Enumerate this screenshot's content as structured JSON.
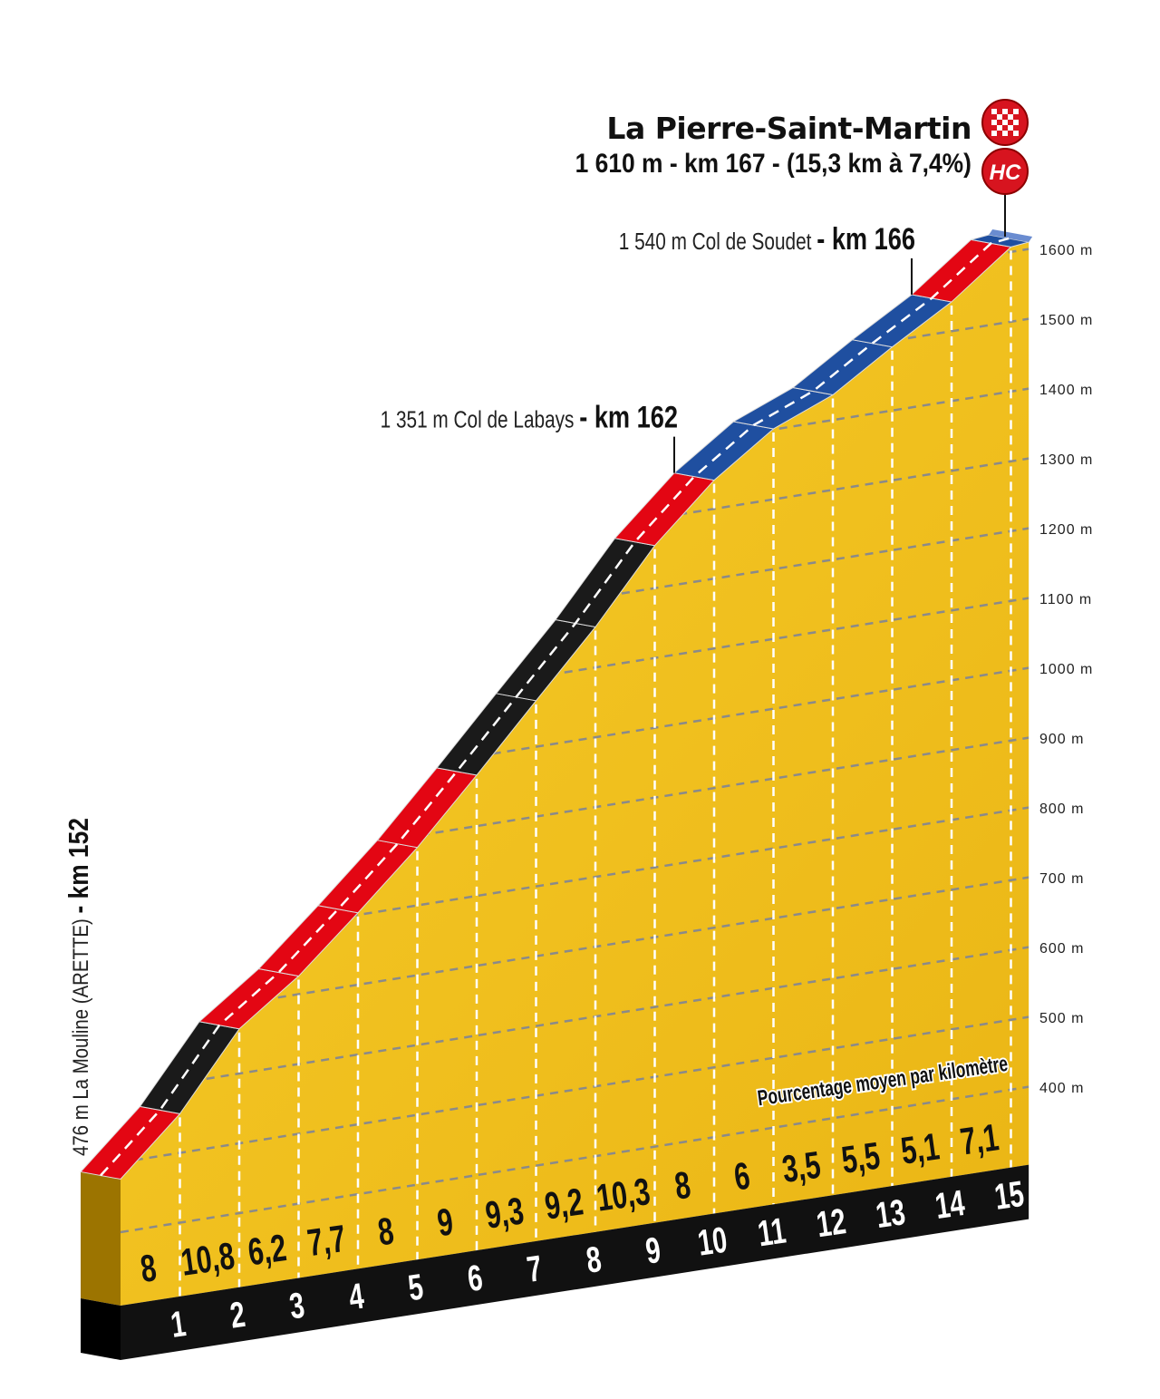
{
  "chart_data": {
    "type": "area",
    "title": "La Pierre-Saint-Martin",
    "subtitle": "1 610 m - km 167 - (15,3 km à 7,4%)",
    "summit_badges": [
      "checkered-flag",
      "HC"
    ],
    "start_label": "476 m  La Mouline (ARETTE) - km 152",
    "start_elevation": 476,
    "summit": {
      "km": 15.3,
      "elevation": 1610
    },
    "km_ticks": [
      "1",
      "2",
      "3",
      "4",
      "5",
      "6",
      "7",
      "8",
      "9",
      "10",
      "11",
      "12",
      "13",
      "14",
      "15"
    ],
    "gradients": [
      8,
      10.8,
      6.2,
      7.7,
      8,
      9,
      9.3,
      9.2,
      10.3,
      8,
      6,
      3.5,
      5.5,
      5.1,
      7.1
    ],
    "gradient_labels": [
      "8",
      "10,8",
      "6,2",
      "7,7",
      "8",
      "9",
      "9,3",
      "9,2",
      "10,3",
      "8",
      "6",
      "3,5",
      "5,5",
      "5,1",
      "7,1"
    ],
    "segment_colors": [
      "#e30613",
      "#1a1a1a",
      "#e30613",
      "#e30613",
      "#e30613",
      "#e30613",
      "#1a1a1a",
      "#1a1a1a",
      "#1a1a1a",
      "#e30613",
      "#1f4fa0",
      "#1f4fa0",
      "#1f4fa0",
      "#1f4fa0",
      "#e30613",
      "#1f4fa0"
    ],
    "gradient_caption": "Pourcentage moyen par kilomètre",
    "y_ticks": [
      {
        "value": 400,
        "label": "400 m"
      },
      {
        "value": 500,
        "label": "500 m"
      },
      {
        "value": 600,
        "label": "600 m"
      },
      {
        "value": 700,
        "label": "700 m"
      },
      {
        "value": 800,
        "label": "800 m"
      },
      {
        "value": 900,
        "label": "900 m"
      },
      {
        "value": 1000,
        "label": "1000 m"
      },
      {
        "value": 1100,
        "label": "1100 m"
      },
      {
        "value": 1200,
        "label": "1200 m"
      },
      {
        "value": 1300,
        "label": "1300 m"
      },
      {
        "value": 1400,
        "label": "1400 m"
      },
      {
        "value": 1500,
        "label": "1500 m"
      },
      {
        "value": 1600,
        "label": "1600 m"
      }
    ],
    "ylim": [
      400,
      1600
    ],
    "annotations": [
      {
        "km": 10,
        "elevation": 1351,
        "label": "1 351 m  Col de Labays",
        "km_label": "- km 162"
      },
      {
        "km": 14,
        "elevation": 1540,
        "label": "1 540 m  Col de Soudet",
        "km_label": "- km 166"
      }
    ],
    "colors": {
      "terrain": "#f2c21b",
      "terrain_side": "#9c7400",
      "base": "#111111",
      "grid": "#8a8a8a"
    }
  }
}
